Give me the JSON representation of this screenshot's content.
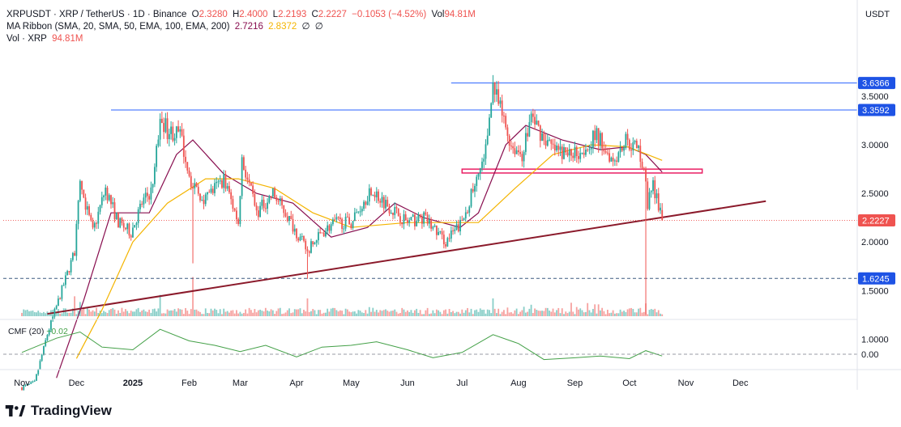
{
  "legend": {
    "symbol": "XRPUSDT · XRP / TetherUS · 1D · Binance",
    "o_label": "O",
    "o_value": "2.3280",
    "h_label": "H",
    "h_value": "2.4000",
    "l_label": "L",
    "l_value": "2.2193",
    "c_label": "C",
    "c_value": "2.2227",
    "change": "−0.1053 (−4.52%)",
    "vol_label": "Vol",
    "vol_value": "94.81M",
    "ma_label": "MA Ribbon (SMA, 20, SMA, 50, EMA, 100, EMA, 200)",
    "ma20_value": "2.7216",
    "ma50_value": "2.8372",
    "ma_null1": "∅",
    "ma_null2": "∅",
    "vol_row_label": "Vol · XRP",
    "vol_row_value": "94.81M",
    "cmf_label": "CMF (20)",
    "cmf_value": "−0.02"
  },
  "brand": {
    "name": "TradingView"
  },
  "colors": {
    "up": "#26a69a",
    "down": "#ef5350",
    "ma20": "#880e4f",
    "ma50": "#f4b400",
    "resistance": "#2962ff",
    "trendline": "#8b1a2b",
    "zone": "#e91e63",
    "cmf": "#43a047",
    "current_price_tag": "#ef5350",
    "level_tag": "#1e53e5"
  },
  "chart_data": {
    "type": "candlestick",
    "price_axis": {
      "unit_label": "USDT",
      "ticks": [
        "3.5000",
        "3.0000",
        "2.5000",
        "2.0000",
        "1.5000",
        "1.0000"
      ],
      "tick_values": [
        3.5,
        3.0,
        2.5,
        2.0,
        1.5,
        1.0
      ],
      "tagged_levels": [
        {
          "label": "3.6366",
          "value": 3.6366,
          "kind": "level"
        },
        {
          "label": "3.3592",
          "value": 3.3592,
          "kind": "level"
        },
        {
          "label": "2.2227",
          "value": 2.2227,
          "kind": "current"
        },
        {
          "label": "1.6245",
          "value": 1.6245,
          "kind": "level"
        }
      ]
    },
    "time_axis": {
      "labels": [
        "Nov",
        "Dec",
        "2025",
        "Feb",
        "Mar",
        "Apr",
        "May",
        "Jun",
        "Jul",
        "Aug",
        "Sep",
        "Oct",
        "Nov",
        "Dec"
      ],
      "dates": [
        "2024-11-01",
        "2024-12-01",
        "2025-01-01",
        "2025-02-01",
        "2025-03-01",
        "2025-04-01",
        "2025-05-01",
        "2025-06-01",
        "2025-07-01",
        "2025-08-01",
        "2025-09-01",
        "2025-10-01",
        "2025-11-01",
        "2025-12-01"
      ],
      "bold": [
        "2025"
      ]
    },
    "price_anchors": [
      [
        "2024-11-01",
        0.5
      ],
      [
        "2024-11-08",
        0.55
      ],
      [
        "2024-11-15",
        1.05
      ],
      [
        "2024-11-22",
        1.45
      ],
      [
        "2024-11-30",
        1.9
      ],
      [
        "2024-12-03",
        2.6
      ],
      [
        "2024-12-10",
        2.1
      ],
      [
        "2024-12-17",
        2.55
      ],
      [
        "2024-12-24",
        2.2
      ],
      [
        "2024-12-31",
        2.1
      ],
      [
        "2025-01-06",
        2.4
      ],
      [
        "2025-01-12",
        2.55
      ],
      [
        "2025-01-16",
        3.3
      ],
      [
        "2025-01-20",
        3.15
      ],
      [
        "2025-01-27",
        3.1
      ],
      [
        "2025-02-03",
        2.55
      ],
      [
        "2025-02-10",
        2.45
      ],
      [
        "2025-02-20",
        2.65
      ],
      [
        "2025-02-28",
        2.2
      ],
      [
        "2025-03-02",
        2.85
      ],
      [
        "2025-03-10",
        2.3
      ],
      [
        "2025-03-19",
        2.5
      ],
      [
        "2025-03-26",
        2.3
      ],
      [
        "2025-04-07",
        1.9
      ],
      [
        "2025-04-15",
        2.1
      ],
      [
        "2025-04-22",
        2.2
      ],
      [
        "2025-05-01",
        2.2
      ],
      [
        "2025-05-12",
        2.55
      ],
      [
        "2025-05-20",
        2.4
      ],
      [
        "2025-06-01",
        2.2
      ],
      [
        "2025-06-10",
        2.25
      ],
      [
        "2025-06-22",
        2.0
      ],
      [
        "2025-07-01",
        2.2
      ],
      [
        "2025-07-10",
        2.7
      ],
      [
        "2025-07-14",
        2.95
      ],
      [
        "2025-07-18",
        3.6
      ],
      [
        "2025-07-23",
        3.3
      ],
      [
        "2025-07-28",
        3.0
      ],
      [
        "2025-08-03",
        2.9
      ],
      [
        "2025-08-08",
        3.3
      ],
      [
        "2025-08-14",
        3.1
      ],
      [
        "2025-08-20",
        2.95
      ],
      [
        "2025-08-28",
        2.9
      ],
      [
        "2025-09-05",
        2.95
      ],
      [
        "2025-09-13",
        3.1
      ],
      [
        "2025-09-22",
        2.85
      ],
      [
        "2025-09-29",
        3.05
      ],
      [
        "2025-10-06",
        2.95
      ],
      [
        "2025-10-09",
        2.75
      ],
      [
        "2025-10-11",
        2.4
      ],
      [
        "2025-10-14",
        2.6
      ],
      [
        "2025-10-17",
        2.35
      ],
      [
        "2025-10-19",
        2.2227
      ]
    ],
    "wick_events": [
      {
        "date": "2025-02-03",
        "low": 1.78
      },
      {
        "date": "2025-04-07",
        "low": 1.62
      },
      {
        "date": "2025-10-10",
        "low": 1.25
      }
    ],
    "lines": [
      {
        "name": "SMA 20",
        "values": [
          [
            "2024-11-20",
            0.6
          ],
          [
            "2024-12-05",
            1.4
          ],
          [
            "2024-12-20",
            2.3
          ],
          [
            "2025-01-10",
            2.3
          ],
          [
            "2025-01-25",
            2.9
          ],
          [
            "2025-02-03",
            3.05
          ],
          [
            "2025-02-20",
            2.7
          ],
          [
            "2025-03-10",
            2.5
          ],
          [
            "2025-03-30",
            2.4
          ],
          [
            "2025-04-20",
            2.05
          ],
          [
            "2025-05-10",
            2.15
          ],
          [
            "2025-05-25",
            2.4
          ],
          [
            "2025-06-10",
            2.25
          ],
          [
            "2025-06-30",
            2.15
          ],
          [
            "2025-07-10",
            2.3
          ],
          [
            "2025-07-25",
            3.0
          ],
          [
            "2025-08-05",
            3.2
          ],
          [
            "2025-08-25",
            3.05
          ],
          [
            "2025-09-15",
            2.95
          ],
          [
            "2025-09-30",
            2.98
          ],
          [
            "2025-10-10",
            2.9
          ],
          [
            "2025-10-19",
            2.72
          ]
        ]
      },
      {
        "name": "SMA 50",
        "values": [
          [
            "2024-12-01",
            0.8
          ],
          [
            "2024-12-15",
            1.3
          ],
          [
            "2025-01-01",
            2.0
          ],
          [
            "2025-01-20",
            2.4
          ],
          [
            "2025-02-10",
            2.65
          ],
          [
            "2025-02-28",
            2.65
          ],
          [
            "2025-03-20",
            2.55
          ],
          [
            "2025-04-10",
            2.3
          ],
          [
            "2025-05-01",
            2.15
          ],
          [
            "2025-06-01",
            2.2
          ],
          [
            "2025-06-25",
            2.2
          ],
          [
            "2025-07-10",
            2.2
          ],
          [
            "2025-07-30",
            2.55
          ],
          [
            "2025-08-20",
            2.9
          ],
          [
            "2025-09-10",
            3.0
          ],
          [
            "2025-09-30",
            2.98
          ],
          [
            "2025-10-19",
            2.84
          ]
        ]
      }
    ],
    "volume": {
      "axis_ticks": [],
      "spikes": [
        [
          "2024-11-30",
          0.28
        ],
        [
          "2024-12-03",
          0.2
        ],
        [
          "2025-01-16",
          0.3
        ],
        [
          "2025-02-03",
          0.55
        ],
        [
          "2025-04-07",
          0.25
        ],
        [
          "2025-07-18",
          0.25
        ],
        [
          "2025-10-10",
          0.18
        ]
      ]
    },
    "cmf": {
      "name": "CMF (20)",
      "axis_ticks": [
        "0.00"
      ],
      "zero_value": 0.0,
      "values": [
        [
          "2024-11-01",
          0.02
        ],
        [
          "2024-11-20",
          0.18
        ],
        [
          "2024-12-03",
          0.25
        ],
        [
          "2024-12-15",
          0.08
        ],
        [
          "2025-01-01",
          0.05
        ],
        [
          "2025-01-16",
          0.28
        ],
        [
          "2025-02-01",
          0.15
        ],
        [
          "2025-02-15",
          0.1
        ],
        [
          "2025-03-01",
          0.03
        ],
        [
          "2025-03-15",
          0.1
        ],
        [
          "2025-04-01",
          -0.03
        ],
        [
          "2025-04-15",
          0.08
        ],
        [
          "2025-05-01",
          0.1
        ],
        [
          "2025-05-15",
          0.14
        ],
        [
          "2025-06-01",
          0.05
        ],
        [
          "2025-06-15",
          -0.04
        ],
        [
          "2025-07-01",
          0.02
        ],
        [
          "2025-07-18",
          0.22
        ],
        [
          "2025-08-01",
          0.12
        ],
        [
          "2025-08-15",
          -0.06
        ],
        [
          "2025-09-01",
          -0.04
        ],
        [
          "2025-09-15",
          -0.02
        ],
        [
          "2025-10-01",
          -0.05
        ],
        [
          "2025-10-10",
          0.04
        ],
        [
          "2025-10-19",
          -0.02
        ]
      ]
    },
    "drawings": [
      {
        "name": "resistance-1",
        "value": 3.6366,
        "from": "2025-06-25",
        "to": "end"
      },
      {
        "name": "resistance-2",
        "value": 3.3592,
        "from": "2024-12-20",
        "to": "end"
      },
      {
        "name": "support",
        "value": 1.6245,
        "from": "start",
        "to": "end",
        "style": "dashed"
      },
      {
        "name": "ascending-trendline",
        "from": [
          "2024-11-15",
          1.26
        ],
        "to": [
          "2025-12-15",
          2.42
        ]
      },
      {
        "name": "resistance-zone",
        "from": "2025-07-01",
        "to": "2025-11-10",
        "low": 2.71,
        "high": 2.75
      }
    ],
    "grid": false,
    "legend_position": "top-left"
  }
}
